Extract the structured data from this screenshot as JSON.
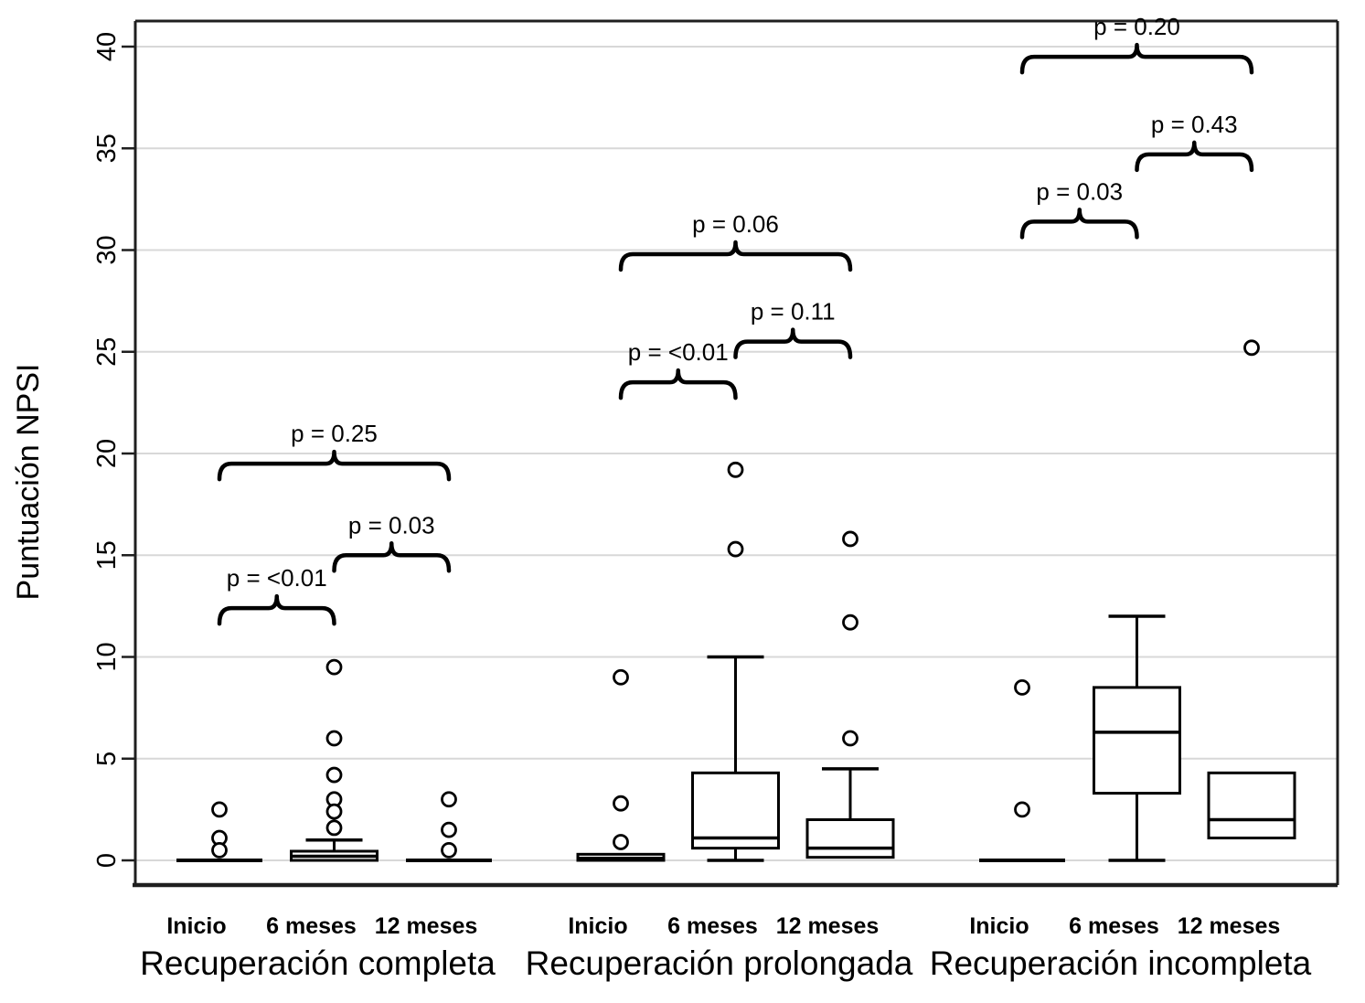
{
  "figure": {
    "ylabel": "Puntuación NPSI"
  },
  "chart_data": {
    "type": "boxplot",
    "title": "",
    "ylabel": "Puntuación NPSI",
    "xlabel": "",
    "ylim": [
      0,
      40
    ],
    "yticks": [
      0,
      5,
      10,
      15,
      20,
      25,
      30,
      35,
      40
    ],
    "grid": true,
    "legend": "none",
    "colors": {
      "box_stroke": "#000000",
      "box_fill": "#ffffff",
      "grid": "#d8d8d8",
      "axis": "#1f1f1f",
      "background": "#ffffff",
      "text": "#000000"
    },
    "groups": [
      {
        "label": "Recuperación completa",
        "timepoints": [
          "Inicio",
          "6 meses",
          "12 meses"
        ],
        "boxes": [
          {
            "timepoint": "Inicio",
            "collapsed": true,
            "median": 0,
            "outliers": [
              2.5,
              1.1,
              0.5
            ]
          },
          {
            "timepoint": "6 meses",
            "q1": 0,
            "median": 0.2,
            "q3": 0.45,
            "whisker_high": 1.0,
            "outliers": [
              9.5,
              6.0,
              4.2,
              3.0,
              2.4,
              1.6
            ]
          },
          {
            "timepoint": "12 meses",
            "collapsed": true,
            "median": 0,
            "outliers": [
              3.0,
              1.5,
              0.5
            ]
          }
        ],
        "comparisons": [
          {
            "label": "p = <0.01",
            "from": 0,
            "to": 1,
            "height": 12.4
          },
          {
            "label": "p = 0.03",
            "from": 1,
            "to": 2,
            "height": 15.0
          },
          {
            "label": "p = 0.25",
            "from": 0,
            "to": 2,
            "height": 19.5
          }
        ]
      },
      {
        "label": "Recuperación prolongada",
        "timepoints": [
          "Inicio",
          "6 meses",
          "12 meses"
        ],
        "boxes": [
          {
            "timepoint": "Inicio",
            "q1": 0,
            "median": 0.1,
            "q3": 0.3,
            "outliers": [
              9.0,
              2.8,
              0.9
            ]
          },
          {
            "timepoint": "6 meses",
            "q1": 0.6,
            "median": 1.1,
            "q3": 4.3,
            "whisker_high": 10.0,
            "whisker_low": 0,
            "outliers": [
              19.2,
              15.3
            ]
          },
          {
            "timepoint": "12 meses",
            "q1": 0.15,
            "median": 0.6,
            "q3": 2.0,
            "whisker_high": 4.5,
            "outliers": [
              15.8,
              11.7,
              6.0
            ]
          }
        ],
        "comparisons": [
          {
            "label": "p = <0.01",
            "from": 0,
            "to": 1,
            "height": 23.5
          },
          {
            "label": "p = 0.11",
            "from": 1,
            "to": 2,
            "height": 25.5
          },
          {
            "label": "p = 0.06",
            "from": 0,
            "to": 2,
            "height": 29.8
          }
        ]
      },
      {
        "label": "Recuperación incompleta",
        "timepoints": [
          "Inicio",
          "6 meses",
          "12 meses"
        ],
        "boxes": [
          {
            "timepoint": "Inicio",
            "collapsed": true,
            "median": 0,
            "outliers": [
              8.5,
              2.5
            ]
          },
          {
            "timepoint": "6 meses",
            "q1": 3.3,
            "median": 6.3,
            "q3": 8.5,
            "whisker_high": 12.0,
            "whisker_low": 0,
            "outliers": []
          },
          {
            "timepoint": "12 meses",
            "q1": 1.1,
            "median": 2.0,
            "q3": 4.3,
            "outliers": [
              25.2
            ]
          }
        ],
        "comparisons": [
          {
            "label": "p = 0.03",
            "from": 0,
            "to": 1,
            "height": 31.4
          },
          {
            "label": "p = 0.43",
            "from": 1,
            "to": 2,
            "height": 34.7
          },
          {
            "label": "p = 0.20",
            "from": 0,
            "to": 2,
            "height": 39.5
          }
        ]
      }
    ]
  }
}
